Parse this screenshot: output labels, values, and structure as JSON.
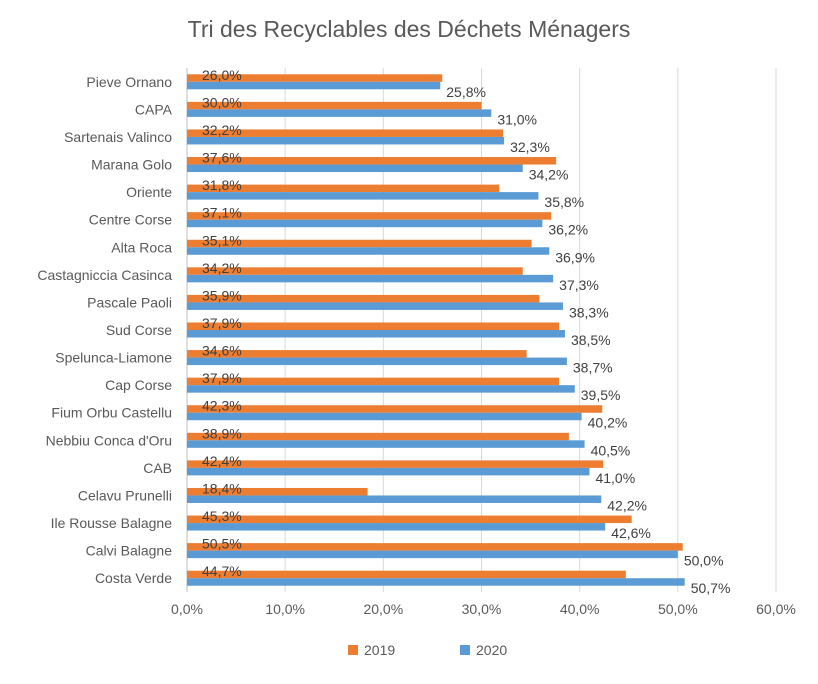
{
  "chart_data": {
    "type": "bar",
    "orientation": "horizontal",
    "title": "Tri des Recyclables des Déchets Ménagers",
    "categories": [
      "Pieve Ornano",
      "CAPA",
      "Sartenais Valinco",
      "Marana Golo",
      "Oriente",
      "Centre Corse",
      "Alta Roca",
      "Castagniccia Casinca",
      "Pascale Paoli",
      "Sud Corse",
      "Spelunca-Liamone",
      "Cap Corse",
      "Fium Orbu Castellu",
      "Nebbiu Conca d'Oru",
      "CAB",
      "Celavu Prunelli",
      "Ile Rousse Balagne",
      "Calvi Balagne",
      "Costa Verde"
    ],
    "series": [
      {
        "name": "2019",
        "color": "#ed7d31",
        "values": [
          26.0,
          30.0,
          32.2,
          37.6,
          31.8,
          37.1,
          35.1,
          34.2,
          35.9,
          37.9,
          34.6,
          37.9,
          42.3,
          38.9,
          42.4,
          18.4,
          45.3,
          50.5,
          44.7
        ],
        "labels": [
          "26,0%",
          "30,0%",
          "32,2%",
          "37,6%",
          "31,8%",
          "37,1%",
          "35,1%",
          "34,2%",
          "35,9%",
          "37,9%",
          "34,6%",
          "37,9%",
          "42,3%",
          "38,9%",
          "42,4%",
          "18,4%",
          "45,3%",
          "50,5%",
          "44,7%"
        ]
      },
      {
        "name": "2020",
        "color": "#5b9bd5",
        "values": [
          25.8,
          31.0,
          32.3,
          34.2,
          35.8,
          36.2,
          36.9,
          37.3,
          38.3,
          38.5,
          38.7,
          39.5,
          40.2,
          40.5,
          41.0,
          42.2,
          42.6,
          50.0,
          50.7
        ],
        "labels": [
          "25,8%",
          "31,0%",
          "32,3%",
          "34,2%",
          "35,8%",
          "36,2%",
          "36,9%",
          "37,3%",
          "38,3%",
          "38,5%",
          "38,7%",
          "39,5%",
          "40,2%",
          "40,5%",
          "41,0%",
          "42,2%",
          "42,6%",
          "50,0%",
          "50,7%"
        ]
      }
    ],
    "xlim": [
      0,
      60
    ],
    "xticks": [
      0,
      10,
      20,
      30,
      40,
      50,
      60
    ],
    "xtick_labels": [
      "0,0%",
      "10,0%",
      "20,0%",
      "30,0%",
      "40,0%",
      "50,0%",
      "60,0%"
    ],
    "grid": true,
    "legend_position": "bottom"
  }
}
